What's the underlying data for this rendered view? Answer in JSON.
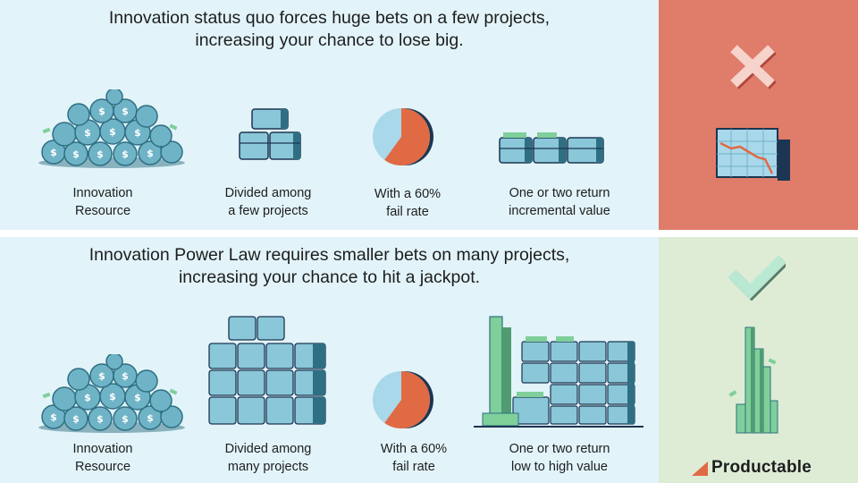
{
  "top": {
    "headline_line1": "Innovation status quo forces huge bets on a few projects,",
    "headline_line2": "increasing your chance to lose big.",
    "steps": [
      {
        "line1": "Innovation",
        "line2": "Resource",
        "icon": "money-bags-icon"
      },
      {
        "line1": "Divided among",
        "line2": "a few projects",
        "icon": "few-chests-icon"
      },
      {
        "line1": "With a 60%",
        "line2": "fail rate",
        "icon": "pie-chart-icon"
      },
      {
        "line1": "One or two return",
        "line2": "incremental value",
        "icon": "chests-row-icon"
      }
    ],
    "verdict_icon": "x-mark-icon",
    "verdict_chart_icon": "declining-chart-icon",
    "fail_rate": 0.6
  },
  "bottom": {
    "headline_line1": "Innovation Power Law requires smaller bets on many projects,",
    "headline_line2": "increasing your chance to hit a jackpot.",
    "steps": [
      {
        "line1": "Innovation",
        "line2": "Resource",
        "icon": "money-bags-icon"
      },
      {
        "line1": "Divided among",
        "line2": "many projects",
        "icon": "many-chests-icon"
      },
      {
        "line1": "With a 60%",
        "line2": "fail rate",
        "icon": "pie-chart-icon"
      },
      {
        "line1": "One or two return",
        "line2": "low to high value",
        "icon": "chests-towers-icon"
      }
    ],
    "verdict_icon": "check-mark-icon",
    "verdict_chart_icon": "power-law-bars-icon",
    "fail_rate": 0.6
  },
  "brand": {
    "name": "Productable",
    "icon": "productable-logo-icon"
  },
  "colors": {
    "panel_bg": "#e2f4f9",
    "fail_side": "#e07c6a",
    "win_side": "#deecd5",
    "teal": "#5aa4b8",
    "teal_dark": "#2f6f83",
    "navy": "#1c3552",
    "orange": "#e06a44",
    "pie_light": "#a8d8ea",
    "green": "#7fcf9a"
  }
}
